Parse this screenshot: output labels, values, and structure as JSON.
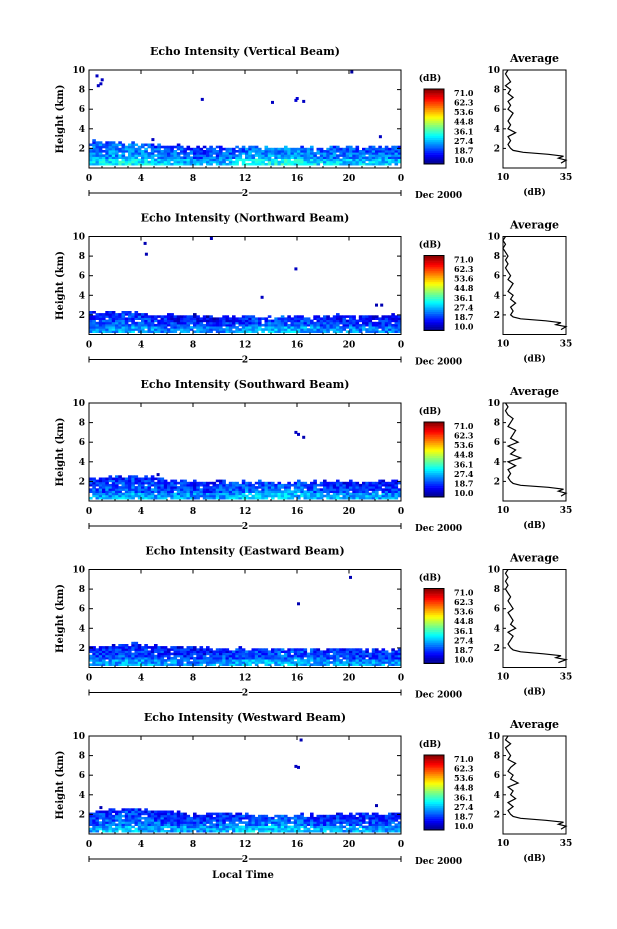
{
  "chart_data": [
    {
      "type": "heatmap",
      "title": "Echo Intensity (Vertical Beam)",
      "ylabel": "Height (km)",
      "x_ticks": [
        "0",
        "4",
        "8",
        "12",
        "16",
        "20",
        "0"
      ],
      "y_ticks": [
        "2",
        "4",
        "6",
        "8",
        "10"
      ],
      "xlim": [
        0,
        24
      ],
      "ylim": [
        0,
        10
      ],
      "date_marker": "2",
      "date_label": "Dec 2000",
      "colorbar": {
        "unit": "(dB)",
        "labels": [
          "71.0",
          "62.3",
          "53.6",
          "44.8",
          "36.1",
          "27.4",
          "18.7",
          "10.0"
        ],
        "range": [
          10.0,
          71.0
        ]
      },
      "echo_layer": {
        "base_km": 0.3,
        "top_km": [
          2.6,
          2.4,
          2.2,
          2.1,
          2.1,
          2.0,
          2.0,
          2.0
        ],
        "top_times_h": [
          0,
          3,
          6,
          9,
          12,
          15,
          18,
          24
        ],
        "intensity_db": [
          28,
          30,
          27,
          25,
          29,
          31,
          28,
          27
        ]
      },
      "sparse_echoes": [
        {
          "t": 0.5,
          "h": 9.4,
          "db": 14
        },
        {
          "t": 0.8,
          "h": 8.6,
          "db": 14
        },
        {
          "t": 0.9,
          "h": 9.0,
          "db": 14
        },
        {
          "t": 0.6,
          "h": 8.4,
          "db": 14
        },
        {
          "t": 8.6,
          "h": 7.0,
          "db": 14
        },
        {
          "t": 14.0,
          "h": 6.7,
          "db": 14
        },
        {
          "t": 15.8,
          "h": 6.9,
          "db": 15
        },
        {
          "t": 15.9,
          "h": 7.1,
          "db": 15
        },
        {
          "t": 16.4,
          "h": 6.8,
          "db": 14
        },
        {
          "t": 20.1,
          "h": 9.8,
          "db": 12
        },
        {
          "t": 22.3,
          "h": 3.2,
          "db": 14
        },
        {
          "t": 4.8,
          "h": 2.9,
          "db": 14
        }
      ],
      "profile": {
        "title": "Average",
        "xlabel": "(dB)",
        "x_ticks": [
          "10",
          "35"
        ],
        "xlim": [
          10,
          35
        ],
        "y_ticks": [
          "2",
          "4",
          "6",
          "8",
          "10"
        ],
        "ylim": [
          0,
          10
        ],
        "heights_km": [
          0.5,
          0.8,
          1.0,
          1.2,
          1.4,
          1.6,
          1.8,
          2.0,
          2.4,
          2.8,
          3.2,
          3.6,
          4.0,
          4.4,
          4.8,
          5.2,
          5.6,
          6.0,
          6.4,
          6.8,
          7.2,
          7.6,
          8.0,
          8.4,
          8.8,
          9.2,
          9.6,
          10.0
        ],
        "values_db": [
          33,
          35,
          32,
          34,
          28,
          18,
          14,
          13,
          12,
          13,
          12,
          15,
          12,
          13,
          12,
          13,
          14,
          12,
          13,
          12,
          14,
          12,
          13,
          11,
          13,
          12,
          11,
          12
        ]
      }
    },
    {
      "type": "heatmap",
      "title": "Echo Intensity (Northward Beam)",
      "ylabel": "Height (km)",
      "x_ticks": [
        "0",
        "4",
        "8",
        "12",
        "16",
        "20",
        "0"
      ],
      "y_ticks": [
        "2",
        "4",
        "6",
        "8",
        "10"
      ],
      "xlim": [
        0,
        24
      ],
      "ylim": [
        0,
        10
      ],
      "date_marker": "2",
      "date_label": "Dec 2000",
      "colorbar": {
        "unit": "(dB)",
        "labels": [
          "71.0",
          "62.3",
          "53.6",
          "44.8",
          "36.1",
          "27.4",
          "18.7",
          "10.0"
        ],
        "range": [
          10.0,
          71.0
        ]
      },
      "echo_layer": {
        "base_km": 0.2,
        "top_km": [
          2.3,
          2.1,
          1.9,
          1.8,
          1.8,
          1.7,
          1.8,
          1.8
        ],
        "top_times_h": [
          0,
          3,
          6,
          9,
          12,
          15,
          18,
          24
        ],
        "intensity_db": [
          24,
          26,
          23,
          22,
          25,
          27,
          24,
          23
        ]
      },
      "sparse_echoes": [
        {
          "t": 4.2,
          "h": 9.3,
          "db": 13
        },
        {
          "t": 4.3,
          "h": 8.2,
          "db": 13
        },
        {
          "t": 9.3,
          "h": 9.8,
          "db": 13
        },
        {
          "t": 15.8,
          "h": 6.7,
          "db": 14
        },
        {
          "t": 13.2,
          "h": 3.8,
          "db": 14
        },
        {
          "t": 22.0,
          "h": 3.0,
          "db": 13
        },
        {
          "t": 22.4,
          "h": 3.0,
          "db": 13
        }
      ],
      "profile": {
        "title": "Average",
        "xlabel": "(dB)",
        "x_ticks": [
          "10",
          "35"
        ],
        "xlim": [
          10,
          35
        ],
        "y_ticks": [
          "2",
          "4",
          "6",
          "8",
          "10"
        ],
        "ylim": [
          0,
          10
        ],
        "heights_km": [
          0.5,
          0.8,
          1.0,
          1.2,
          1.4,
          1.6,
          1.8,
          2.0,
          2.4,
          2.8,
          3.2,
          3.6,
          4.0,
          4.4,
          4.8,
          5.2,
          5.6,
          6.0,
          6.4,
          6.8,
          7.2,
          7.6,
          8.0,
          8.4,
          8.8,
          9.2,
          9.6,
          10.0
        ],
        "values_db": [
          33,
          35,
          31,
          33,
          27,
          17,
          14,
          13,
          14,
          13,
          15,
          13,
          14,
          12,
          13,
          14,
          12,
          13,
          12,
          11,
          12,
          11,
          12,
          11,
          10,
          11,
          10,
          11
        ]
      }
    },
    {
      "type": "heatmap",
      "title": "Echo Intensity (Southward Beam)",
      "ylabel": "Height (km)",
      "x_ticks": [
        "0",
        "4",
        "8",
        "12",
        "16",
        "20",
        "0"
      ],
      "y_ticks": [
        "2",
        "4",
        "6",
        "8",
        "10"
      ],
      "xlim": [
        0,
        24
      ],
      "ylim": [
        0,
        10
      ],
      "date_marker": "2",
      "date_label": "Dec 2000",
      "colorbar": {
        "unit": "(dB)",
        "labels": [
          "71.0",
          "62.3",
          "53.6",
          "44.8",
          "36.1",
          "27.4",
          "18.7",
          "10.0"
        ],
        "range": [
          10.0,
          71.0
        ]
      },
      "echo_layer": {
        "base_km": 0.2,
        "top_km": [
          2.2,
          2.5,
          2.1,
          1.9,
          1.9,
          1.8,
          1.9,
          1.9
        ],
        "top_times_h": [
          0,
          3,
          6,
          9,
          12,
          15,
          18,
          24
        ],
        "intensity_db": [
          24,
          26,
          25,
          24,
          27,
          28,
          25,
          24
        ]
      },
      "sparse_echoes": [
        {
          "t": 15.8,
          "h": 7.0,
          "db": 14
        },
        {
          "t": 16.0,
          "h": 6.8,
          "db": 14
        },
        {
          "t": 16.4,
          "h": 6.5,
          "db": 13
        },
        {
          "t": 5.2,
          "h": 2.7,
          "db": 13
        }
      ],
      "profile": {
        "title": "Average",
        "xlabel": "(dB)",
        "x_ticks": [
          "10",
          "35"
        ],
        "xlim": [
          10,
          35
        ],
        "y_ticks": [
          "2",
          "4",
          "6",
          "8",
          "10"
        ],
        "ylim": [
          0,
          10
        ],
        "heights_km": [
          0.5,
          0.8,
          1.0,
          1.2,
          1.4,
          1.6,
          1.8,
          2.0,
          2.4,
          2.8,
          3.2,
          3.6,
          4.0,
          4.4,
          4.8,
          5.2,
          5.6,
          6.0,
          6.4,
          6.8,
          7.2,
          7.6,
          8.0,
          8.4,
          8.8,
          9.2,
          9.6,
          10.0
        ],
        "values_db": [
          33,
          35,
          32,
          34,
          28,
          17,
          14,
          13,
          12,
          13,
          12,
          15,
          12,
          17,
          13,
          15,
          12,
          16,
          13,
          14,
          15,
          12,
          13,
          14,
          12,
          11,
          12,
          11
        ]
      }
    },
    {
      "type": "heatmap",
      "title": "Echo Intensity (Eastward Beam)",
      "ylabel": "Height (km)",
      "x_ticks": [
        "0",
        "4",
        "8",
        "12",
        "16",
        "20",
        "0"
      ],
      "y_ticks": [
        "2",
        "4",
        "6",
        "8",
        "10"
      ],
      "xlim": [
        0,
        24
      ],
      "ylim": [
        0,
        10
      ],
      "date_marker": "2",
      "date_label": "Dec 2000",
      "colorbar": {
        "unit": "(dB)",
        "labels": [
          "71.0",
          "62.3",
          "53.6",
          "44.8",
          "36.1",
          "27.4",
          "18.7",
          "10.0"
        ],
        "range": [
          10.0,
          71.0
        ]
      },
      "echo_layer": {
        "base_km": 0.2,
        "top_km": [
          2.0,
          2.3,
          2.0,
          1.9,
          1.8,
          1.8,
          1.8,
          1.8
        ],
        "top_times_h": [
          0,
          3,
          6,
          9,
          12,
          15,
          18,
          24
        ],
        "intensity_db": [
          24,
          25,
          24,
          23,
          26,
          27,
          25,
          24
        ]
      },
      "sparse_echoes": [
        {
          "t": 20.0,
          "h": 9.2,
          "db": 13
        },
        {
          "t": 16.0,
          "h": 6.5,
          "db": 13
        }
      ],
      "profile": {
        "title": "Average",
        "xlabel": "(dB)",
        "x_ticks": [
          "10",
          "35"
        ],
        "xlim": [
          10,
          35
        ],
        "y_ticks": [
          "2",
          "4",
          "6",
          "8",
          "10"
        ],
        "ylim": [
          0,
          10
        ],
        "heights_km": [
          0.5,
          0.8,
          1.0,
          1.2,
          1.4,
          1.6,
          1.8,
          2.0,
          2.4,
          2.8,
          3.2,
          3.6,
          4.0,
          4.4,
          4.8,
          5.2,
          5.6,
          6.0,
          6.4,
          6.8,
          7.2,
          7.6,
          8.0,
          8.4,
          8.8,
          9.2,
          9.6,
          10.0
        ],
        "values_db": [
          32,
          35,
          31,
          33,
          26,
          17,
          14,
          13,
          12,
          13,
          14,
          12,
          15,
          13,
          14,
          13,
          12,
          14,
          13,
          12,
          13,
          12,
          11,
          12,
          11,
          12,
          11,
          12
        ]
      }
    },
    {
      "type": "heatmap",
      "title": "Echo Intensity (Westward Beam)",
      "ylabel": "Height (km)",
      "x_ticks": [
        "0",
        "4",
        "8",
        "12",
        "16",
        "20",
        "0"
      ],
      "y_ticks": [
        "2",
        "4",
        "6",
        "8",
        "10"
      ],
      "xlim": [
        0,
        24
      ],
      "ylim": [
        0,
        10
      ],
      "date_marker": "2",
      "date_label": "Dec 2000",
      "xlabel": "Local Time",
      "colorbar": {
        "unit": "(dB)",
        "labels": [
          "71.0",
          "62.3",
          "53.6",
          "44.8",
          "36.1",
          "27.4",
          "18.7",
          "10.0"
        ],
        "range": [
          10.0,
          71.0
        ]
      },
      "echo_layer": {
        "base_km": 0.2,
        "top_km": [
          2.2,
          2.5,
          2.2,
          2.0,
          1.9,
          1.8,
          1.9,
          2.0
        ],
        "top_times_h": [
          0,
          3,
          6,
          9,
          12,
          15,
          18,
          24
        ],
        "intensity_db": [
          25,
          27,
          25,
          24,
          27,
          28,
          25,
          25
        ]
      },
      "sparse_echoes": [
        {
          "t": 16.2,
          "h": 9.6,
          "db": 13
        },
        {
          "t": 15.8,
          "h": 6.9,
          "db": 14
        },
        {
          "t": 16.0,
          "h": 6.8,
          "db": 14
        },
        {
          "t": 0.8,
          "h": 2.7,
          "db": 13
        },
        {
          "t": 22.0,
          "h": 2.9,
          "db": 13
        }
      ],
      "profile": {
        "title": "Average",
        "xlabel": "(dB)",
        "x_ticks": [
          "10",
          "35"
        ],
        "xlim": [
          10,
          35
        ],
        "y_ticks": [
          "2",
          "4",
          "6",
          "8",
          "10"
        ],
        "ylim": [
          0,
          10
        ],
        "heights_km": [
          0.5,
          0.8,
          1.0,
          1.2,
          1.4,
          1.6,
          1.8,
          2.0,
          2.4,
          2.8,
          3.2,
          3.6,
          4.0,
          4.4,
          4.8,
          5.2,
          5.6,
          6.0,
          6.4,
          6.8,
          7.2,
          7.6,
          8.0,
          8.4,
          8.8,
          9.2,
          9.6,
          10.0
        ],
        "values_db": [
          33,
          35,
          32,
          34,
          27,
          17,
          14,
          13,
          12,
          14,
          12,
          15,
          13,
          14,
          12,
          16,
          13,
          14,
          12,
          13,
          15,
          12,
          13,
          12,
          11,
          13,
          11,
          12
        ]
      }
    }
  ]
}
